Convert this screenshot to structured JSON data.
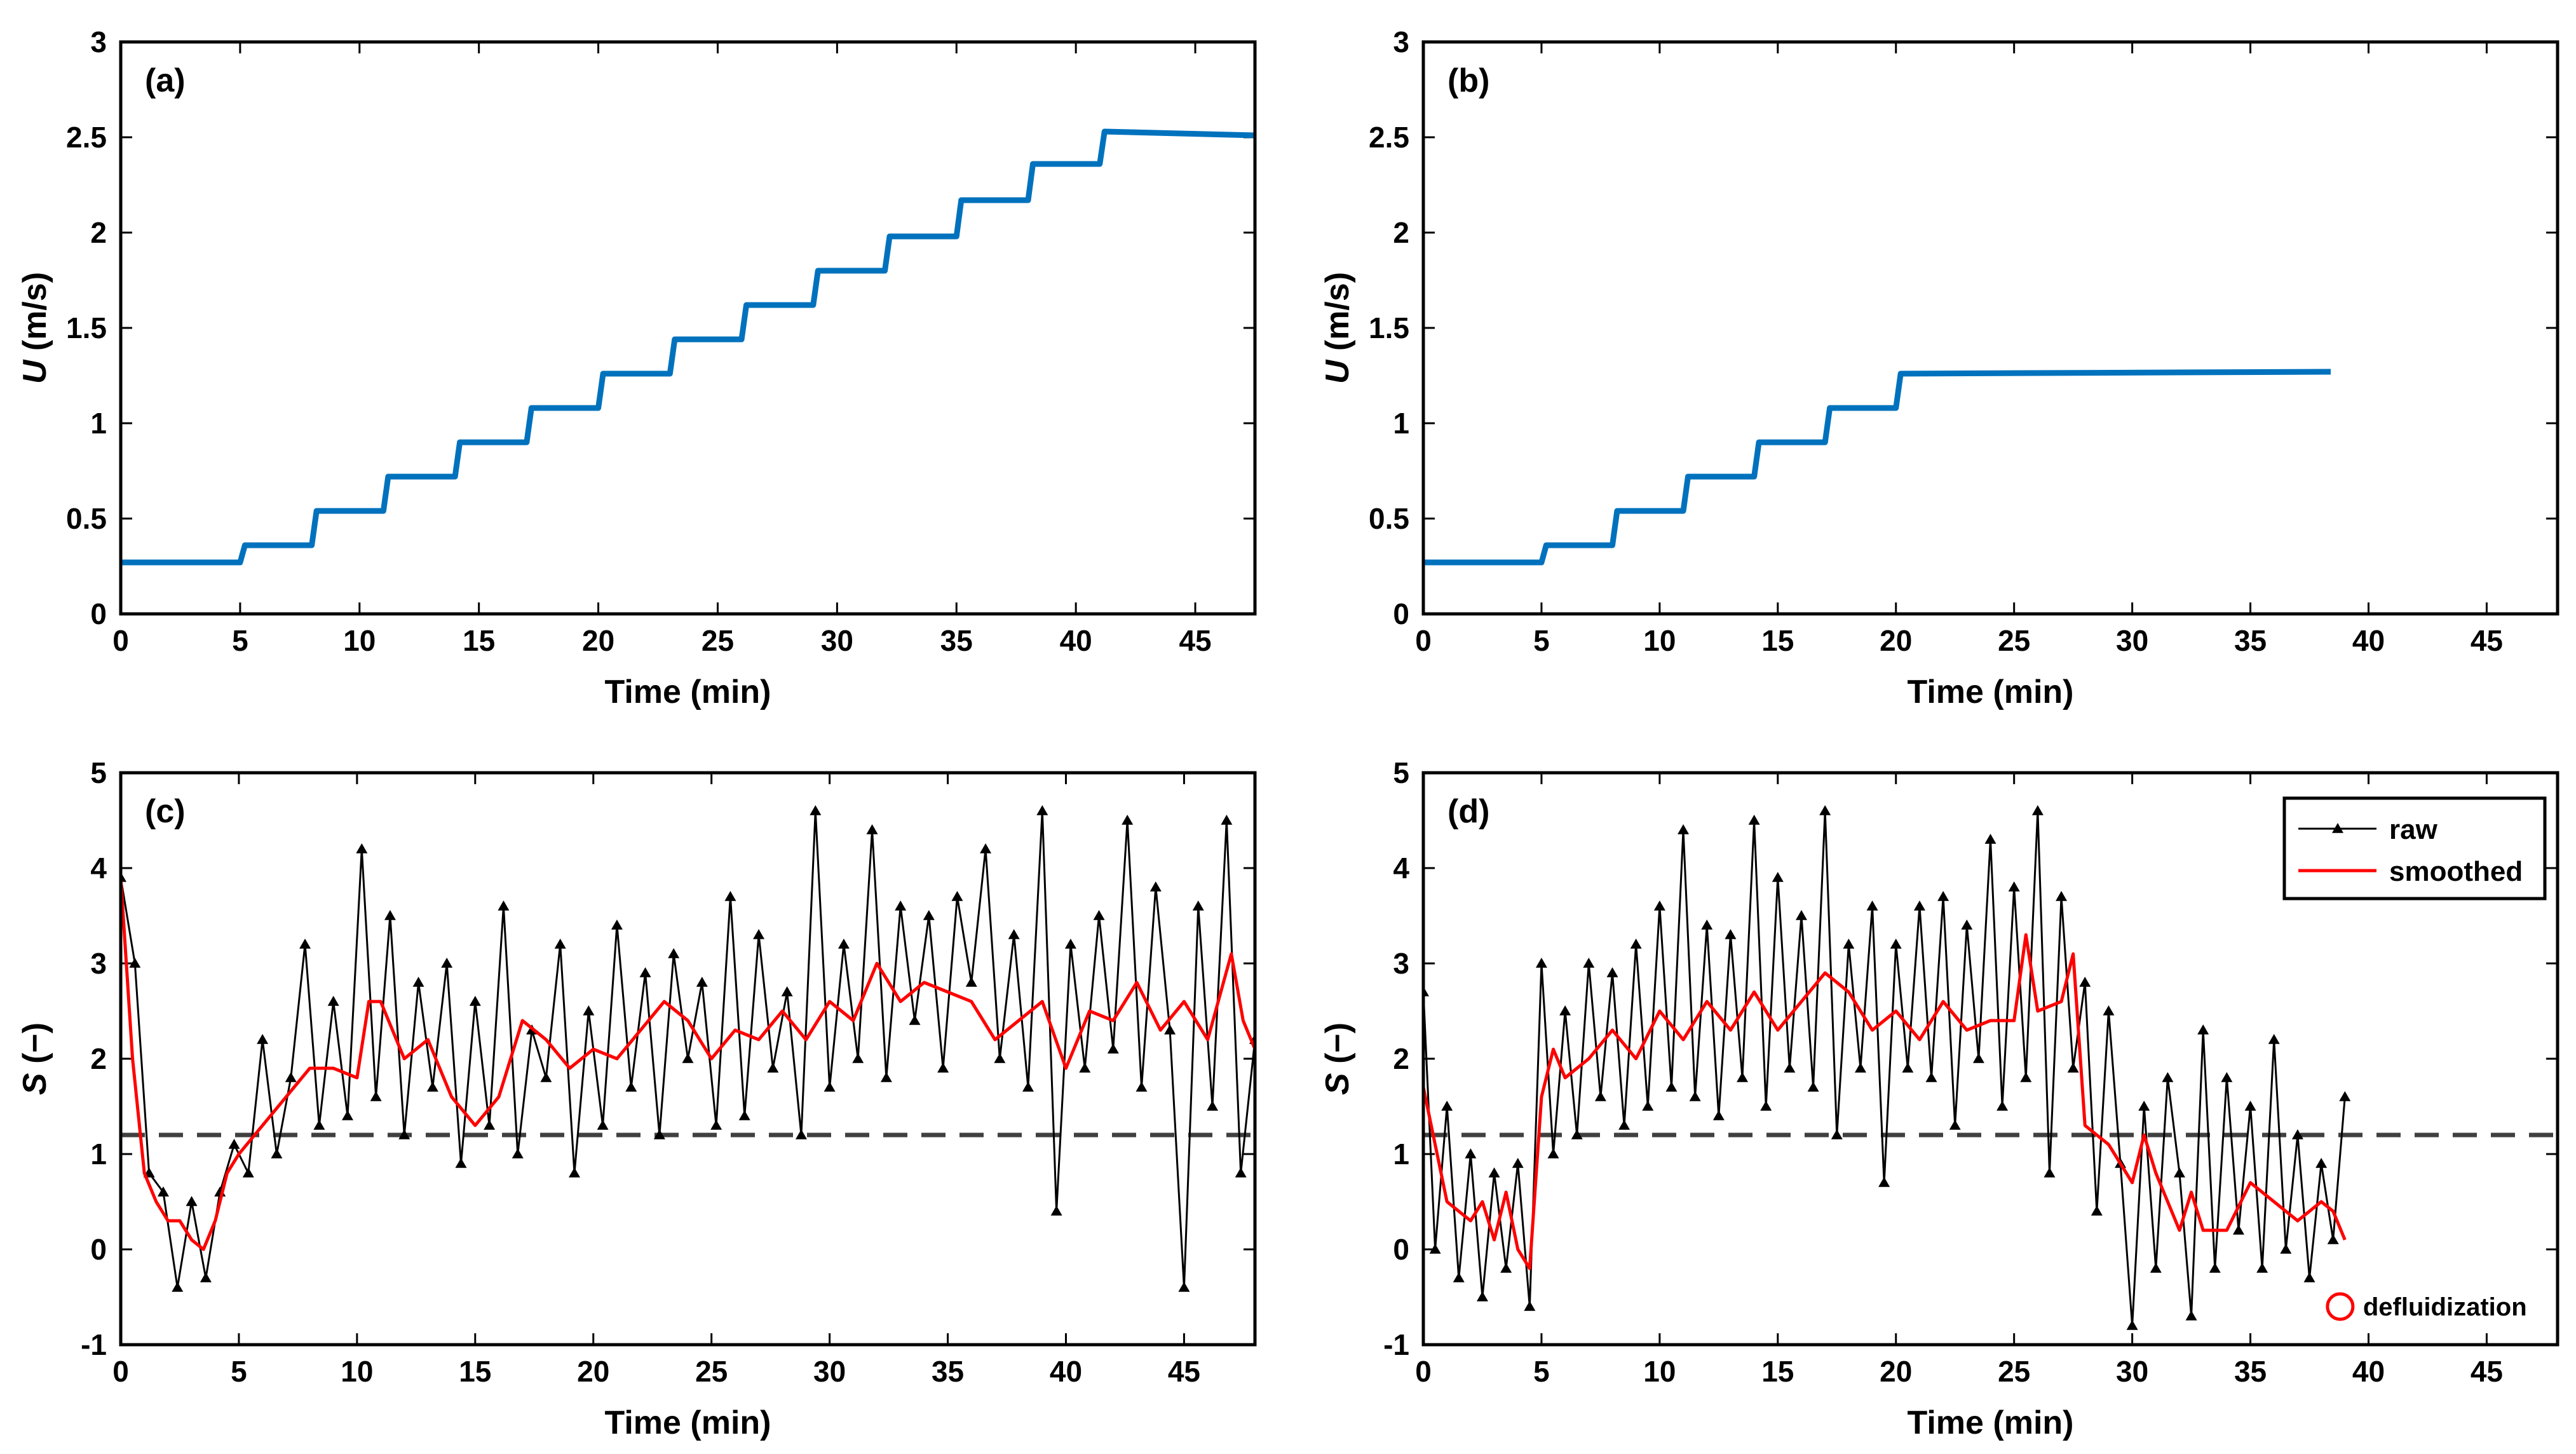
{
  "figure": {
    "panels": 4
  },
  "colors": {
    "blue": "#0072bd",
    "black": "#000000",
    "red": "#ff0000",
    "dash": "#404040"
  },
  "chart_data": [
    {
      "id": "a",
      "type": "line",
      "panel_label": "(a)",
      "xlabel": "Time (min)",
      "ylabel": "U (m/s)",
      "ylabel_italic": "U",
      "ylabel_rest": " (m/s)",
      "xlim": [
        0,
        47.5
      ],
      "ylim": [
        0,
        3
      ],
      "xticks": [
        0,
        5,
        10,
        15,
        20,
        25,
        30,
        35,
        40,
        45
      ],
      "xticklabels": [
        "0",
        "5",
        "10",
        "15",
        "20",
        "25",
        "30",
        "35",
        "40",
        "45"
      ],
      "yticks": [
        0,
        0.5,
        1,
        1.5,
        2,
        2.5,
        3
      ],
      "yticklabels": [
        "0",
        "0.5",
        "1",
        "1.5",
        "2",
        "2.5",
        "3"
      ],
      "series": [
        {
          "name": "U",
          "style": "blue-step",
          "x": [
            0,
            5,
            5.2,
            8,
            8.2,
            11,
            11.2,
            14,
            14.2,
            17,
            17.2,
            20,
            20.2,
            23,
            23.2,
            26,
            26.2,
            29,
            29.2,
            32,
            32.2,
            35,
            35.2,
            38,
            38.2,
            41,
            41.2,
            47.5
          ],
          "y": [
            0.27,
            0.27,
            0.36,
            0.36,
            0.54,
            0.54,
            0.72,
            0.72,
            0.9,
            0.9,
            1.08,
            1.08,
            1.26,
            1.26,
            1.44,
            1.44,
            1.62,
            1.62,
            1.8,
            1.8,
            1.98,
            1.98,
            2.17,
            2.17,
            2.36,
            2.36,
            2.53,
            2.51
          ]
        }
      ]
    },
    {
      "id": "b",
      "type": "line",
      "panel_label": "(b)",
      "xlabel": "Time (min)",
      "ylabel": "U (m/s)",
      "ylabel_italic": "U",
      "ylabel_rest": " (m/s)",
      "xlim": [
        0,
        48
      ],
      "ylim": [
        0,
        3
      ],
      "xticks": [
        0,
        5,
        10,
        15,
        20,
        25,
        30,
        35,
        40,
        45
      ],
      "xticklabels": [
        "0",
        "5",
        "10",
        "15",
        "20",
        "25",
        "30",
        "35",
        "40",
        "45"
      ],
      "yticks": [
        0,
        0.5,
        1,
        1.5,
        2,
        2.5,
        3
      ],
      "yticklabels": [
        "0",
        "0.5",
        "1",
        "1.5",
        "2",
        "2.5",
        "3"
      ],
      "series": [
        {
          "name": "U",
          "style": "blue-step",
          "x": [
            0,
            5,
            5.2,
            8,
            8.2,
            11,
            11.2,
            14,
            14.2,
            17,
            17.2,
            20,
            20.2,
            38.4
          ],
          "y": [
            0.27,
            0.27,
            0.36,
            0.36,
            0.54,
            0.54,
            0.72,
            0.72,
            0.9,
            0.9,
            1.08,
            1.08,
            1.26,
            1.27
          ]
        }
      ]
    },
    {
      "id": "c",
      "type": "line",
      "panel_label": "(c)",
      "xlabel": "Time (min)",
      "ylabel": "S (−)",
      "ylabel_italic": "S",
      "ylabel_rest": " (−)",
      "xlim": [
        0,
        48
      ],
      "ylim": [
        -1,
        5
      ],
      "xticks": [
        0,
        5,
        10,
        15,
        20,
        25,
        30,
        35,
        40,
        45
      ],
      "xticklabels": [
        "0",
        "5",
        "10",
        "15",
        "20",
        "25",
        "30",
        "35",
        "40",
        "45"
      ],
      "yticks": [
        -1,
        0,
        1,
        2,
        3,
        4,
        5
      ],
      "yticklabels": [
        "-1",
        "0",
        "1",
        "2",
        "3",
        "4",
        "5"
      ],
      "threshold": 1.2,
      "series": [
        {
          "name": "raw",
          "style": "black-marker",
          "x": [
            0,
            0.6,
            1.2,
            1.8,
            2.4,
            3,
            3.6,
            4.2,
            4.8,
            5.4,
            6,
            6.6,
            7.2,
            7.8,
            8.4,
            9,
            9.6,
            10.2,
            10.8,
            11.4,
            12,
            12.6,
            13.2,
            13.8,
            14.4,
            15,
            15.6,
            16.2,
            16.8,
            17.4,
            18,
            18.6,
            19.2,
            19.8,
            20.4,
            21,
            21.6,
            22.2,
            22.8,
            23.4,
            24,
            24.6,
            25.2,
            25.8,
            26.4,
            27,
            27.6,
            28.2,
            28.8,
            29.4,
            30,
            30.6,
            31.2,
            31.8,
            32.4,
            33,
            33.6,
            34.2,
            34.8,
            35.4,
            36,
            36.6,
            37.2,
            37.8,
            38.4,
            39,
            39.6,
            40.2,
            40.8,
            41.4,
            42,
            42.6,
            43.2,
            43.8,
            44.4,
            45,
            45.6,
            46.2,
            46.8,
            47.4,
            48
          ],
          "y": [
            3.9,
            3.0,
            0.8,
            0.6,
            -0.4,
            0.5,
            -0.3,
            0.6,
            1.1,
            0.8,
            2.2,
            1.0,
            1.8,
            3.2,
            1.3,
            2.6,
            1.4,
            4.2,
            1.6,
            3.5,
            1.2,
            2.8,
            1.7,
            3.0,
            0.9,
            2.6,
            1.3,
            3.6,
            1.0,
            2.3,
            1.8,
            3.2,
            0.8,
            2.5,
            1.3,
            3.4,
            1.7,
            2.9,
            1.2,
            3.1,
            2.0,
            2.8,
            1.3,
            3.7,
            1.4,
            3.3,
            1.9,
            2.7,
            1.2,
            4.6,
            1.7,
            3.2,
            2.0,
            4.4,
            1.8,
            3.6,
            2.4,
            3.5,
            1.9,
            3.7,
            2.8,
            4.2,
            2.0,
            3.3,
            1.7,
            4.6,
            0.4,
            3.2,
            1.9,
            3.5,
            2.1,
            4.5,
            1.7,
            3.8,
            2.3,
            -0.4,
            3.6,
            1.5,
            4.5,
            0.8,
            2.2
          ]
        },
        {
          "name": "smoothed",
          "style": "red-line",
          "x": [
            0,
            0.5,
            1,
            1.5,
            2,
            2.5,
            3,
            3.5,
            4,
            4.5,
            5,
            6,
            7,
            8,
            9,
            10,
            10.5,
            11,
            12,
            13,
            14,
            15,
            16,
            17,
            18,
            19,
            20,
            21,
            22,
            23,
            24,
            25,
            26,
            27,
            28,
            29,
            30,
            31,
            32,
            33,
            34,
            35,
            36,
            37,
            38,
            39,
            40,
            41,
            42,
            43,
            44,
            45,
            46,
            47,
            47.5,
            48
          ],
          "y": [
            3.9,
            2.0,
            0.8,
            0.5,
            0.3,
            0.3,
            0.1,
            0.0,
            0.3,
            0.8,
            1.0,
            1.3,
            1.6,
            1.9,
            1.9,
            1.8,
            2.6,
            2.6,
            2.0,
            2.2,
            1.6,
            1.3,
            1.6,
            2.4,
            2.2,
            1.9,
            2.1,
            2.0,
            2.3,
            2.6,
            2.4,
            2.0,
            2.3,
            2.2,
            2.5,
            2.2,
            2.6,
            2.4,
            3.0,
            2.6,
            2.8,
            2.7,
            2.6,
            2.2,
            2.4,
            2.6,
            1.9,
            2.5,
            2.4,
            2.8,
            2.3,
            2.6,
            2.2,
            3.1,
            2.4,
            2.1
          ]
        }
      ]
    },
    {
      "id": "d",
      "type": "line",
      "panel_label": "(d)",
      "xlabel": "Time (min)",
      "ylabel": "S (−)",
      "ylabel_italic": "S",
      "ylabel_rest": " (−)",
      "xlim": [
        0,
        48
      ],
      "ylim": [
        -1,
        5
      ],
      "xticks": [
        0,
        5,
        10,
        15,
        20,
        25,
        30,
        35,
        40,
        45
      ],
      "xticklabels": [
        "0",
        "5",
        "10",
        "15",
        "20",
        "25",
        "30",
        "35",
        "40",
        "45"
      ],
      "yticks": [
        -1,
        0,
        1,
        2,
        3,
        4,
        5
      ],
      "yticklabels": [
        "-1",
        "0",
        "1",
        "2",
        "3",
        "4",
        "5"
      ],
      "threshold": 1.2,
      "legend": {
        "location": "top-right",
        "entries": [
          "raw",
          "smoothed"
        ]
      },
      "annotation": {
        "text": "defluidization",
        "x": 38.8,
        "y": -0.6
      },
      "series": [
        {
          "name": "raw",
          "style": "black-marker",
          "x": [
            0,
            0.5,
            1,
            1.5,
            2,
            2.5,
            3,
            3.5,
            4,
            4.5,
            5,
            5.5,
            6,
            6.5,
            7,
            7.5,
            8,
            8.5,
            9,
            9.5,
            10,
            10.5,
            11,
            11.5,
            12,
            12.5,
            13,
            13.5,
            14,
            14.5,
            15,
            15.5,
            16,
            16.5,
            17,
            17.5,
            18,
            18.5,
            19,
            19.5,
            20,
            20.5,
            21,
            21.5,
            22,
            22.5,
            23,
            23.5,
            24,
            24.5,
            25,
            25.5,
            26,
            26.5,
            27,
            27.5,
            28,
            28.5,
            29,
            29.5,
            30,
            30.5,
            31,
            31.5,
            32,
            32.5,
            33,
            33.5,
            34,
            34.5,
            35,
            35.5,
            36,
            36.5,
            37,
            37.5,
            38,
            38.5,
            39
          ],
          "y": [
            2.7,
            0.0,
            1.5,
            -0.3,
            1.0,
            -0.5,
            0.8,
            -0.2,
            0.9,
            -0.6,
            3.0,
            1.0,
            2.5,
            1.2,
            3.0,
            1.6,
            2.9,
            1.3,
            3.2,
            1.5,
            3.6,
            1.7,
            4.4,
            1.6,
            3.4,
            1.4,
            3.3,
            1.8,
            4.5,
            1.5,
            3.9,
            1.9,
            3.5,
            1.7,
            4.6,
            1.2,
            3.2,
            1.9,
            3.6,
            0.7,
            3.2,
            1.9,
            3.6,
            1.8,
            3.7,
            1.3,
            3.4,
            2.0,
            4.3,
            1.5,
            3.8,
            1.8,
            4.6,
            0.8,
            3.7,
            1.9,
            2.8,
            0.4,
            2.5,
            0.9,
            -0.8,
            1.5,
            -0.2,
            1.8,
            0.8,
            -0.7,
            2.3,
            -0.2,
            1.8,
            0.2,
            1.5,
            -0.2,
            2.2,
            0.0,
            1.2,
            -0.3,
            0.9,
            0.1,
            1.6
          ]
        },
        {
          "name": "smoothed",
          "style": "red-line",
          "x": [
            0,
            0.5,
            1,
            1.5,
            2,
            2.5,
            3,
            3.5,
            4,
            4.5,
            5,
            5.5,
            6,
            7,
            8,
            9,
            10,
            11,
            12,
            13,
            14,
            15,
            16,
            17,
            18,
            19,
            20,
            21,
            22,
            23,
            24,
            25,
            25.5,
            26,
            27,
            27.5,
            28,
            29,
            30,
            30.5,
            31,
            32,
            32.5,
            33,
            34,
            35,
            36,
            37,
            38,
            38.5,
            39
          ],
          "y": [
            1.7,
            1.1,
            0.5,
            0.4,
            0.3,
            0.5,
            0.1,
            0.6,
            0.0,
            -0.2,
            1.6,
            2.1,
            1.8,
            2.0,
            2.3,
            2.0,
            2.5,
            2.2,
            2.6,
            2.3,
            2.7,
            2.3,
            2.6,
            2.9,
            2.7,
            2.3,
            2.5,
            2.2,
            2.6,
            2.3,
            2.4,
            2.4,
            3.3,
            2.5,
            2.6,
            3.1,
            1.3,
            1.1,
            0.7,
            1.2,
            0.8,
            0.2,
            0.6,
            0.2,
            0.2,
            0.7,
            0.5,
            0.3,
            0.5,
            0.4,
            0.1
          ]
        }
      ]
    }
  ]
}
